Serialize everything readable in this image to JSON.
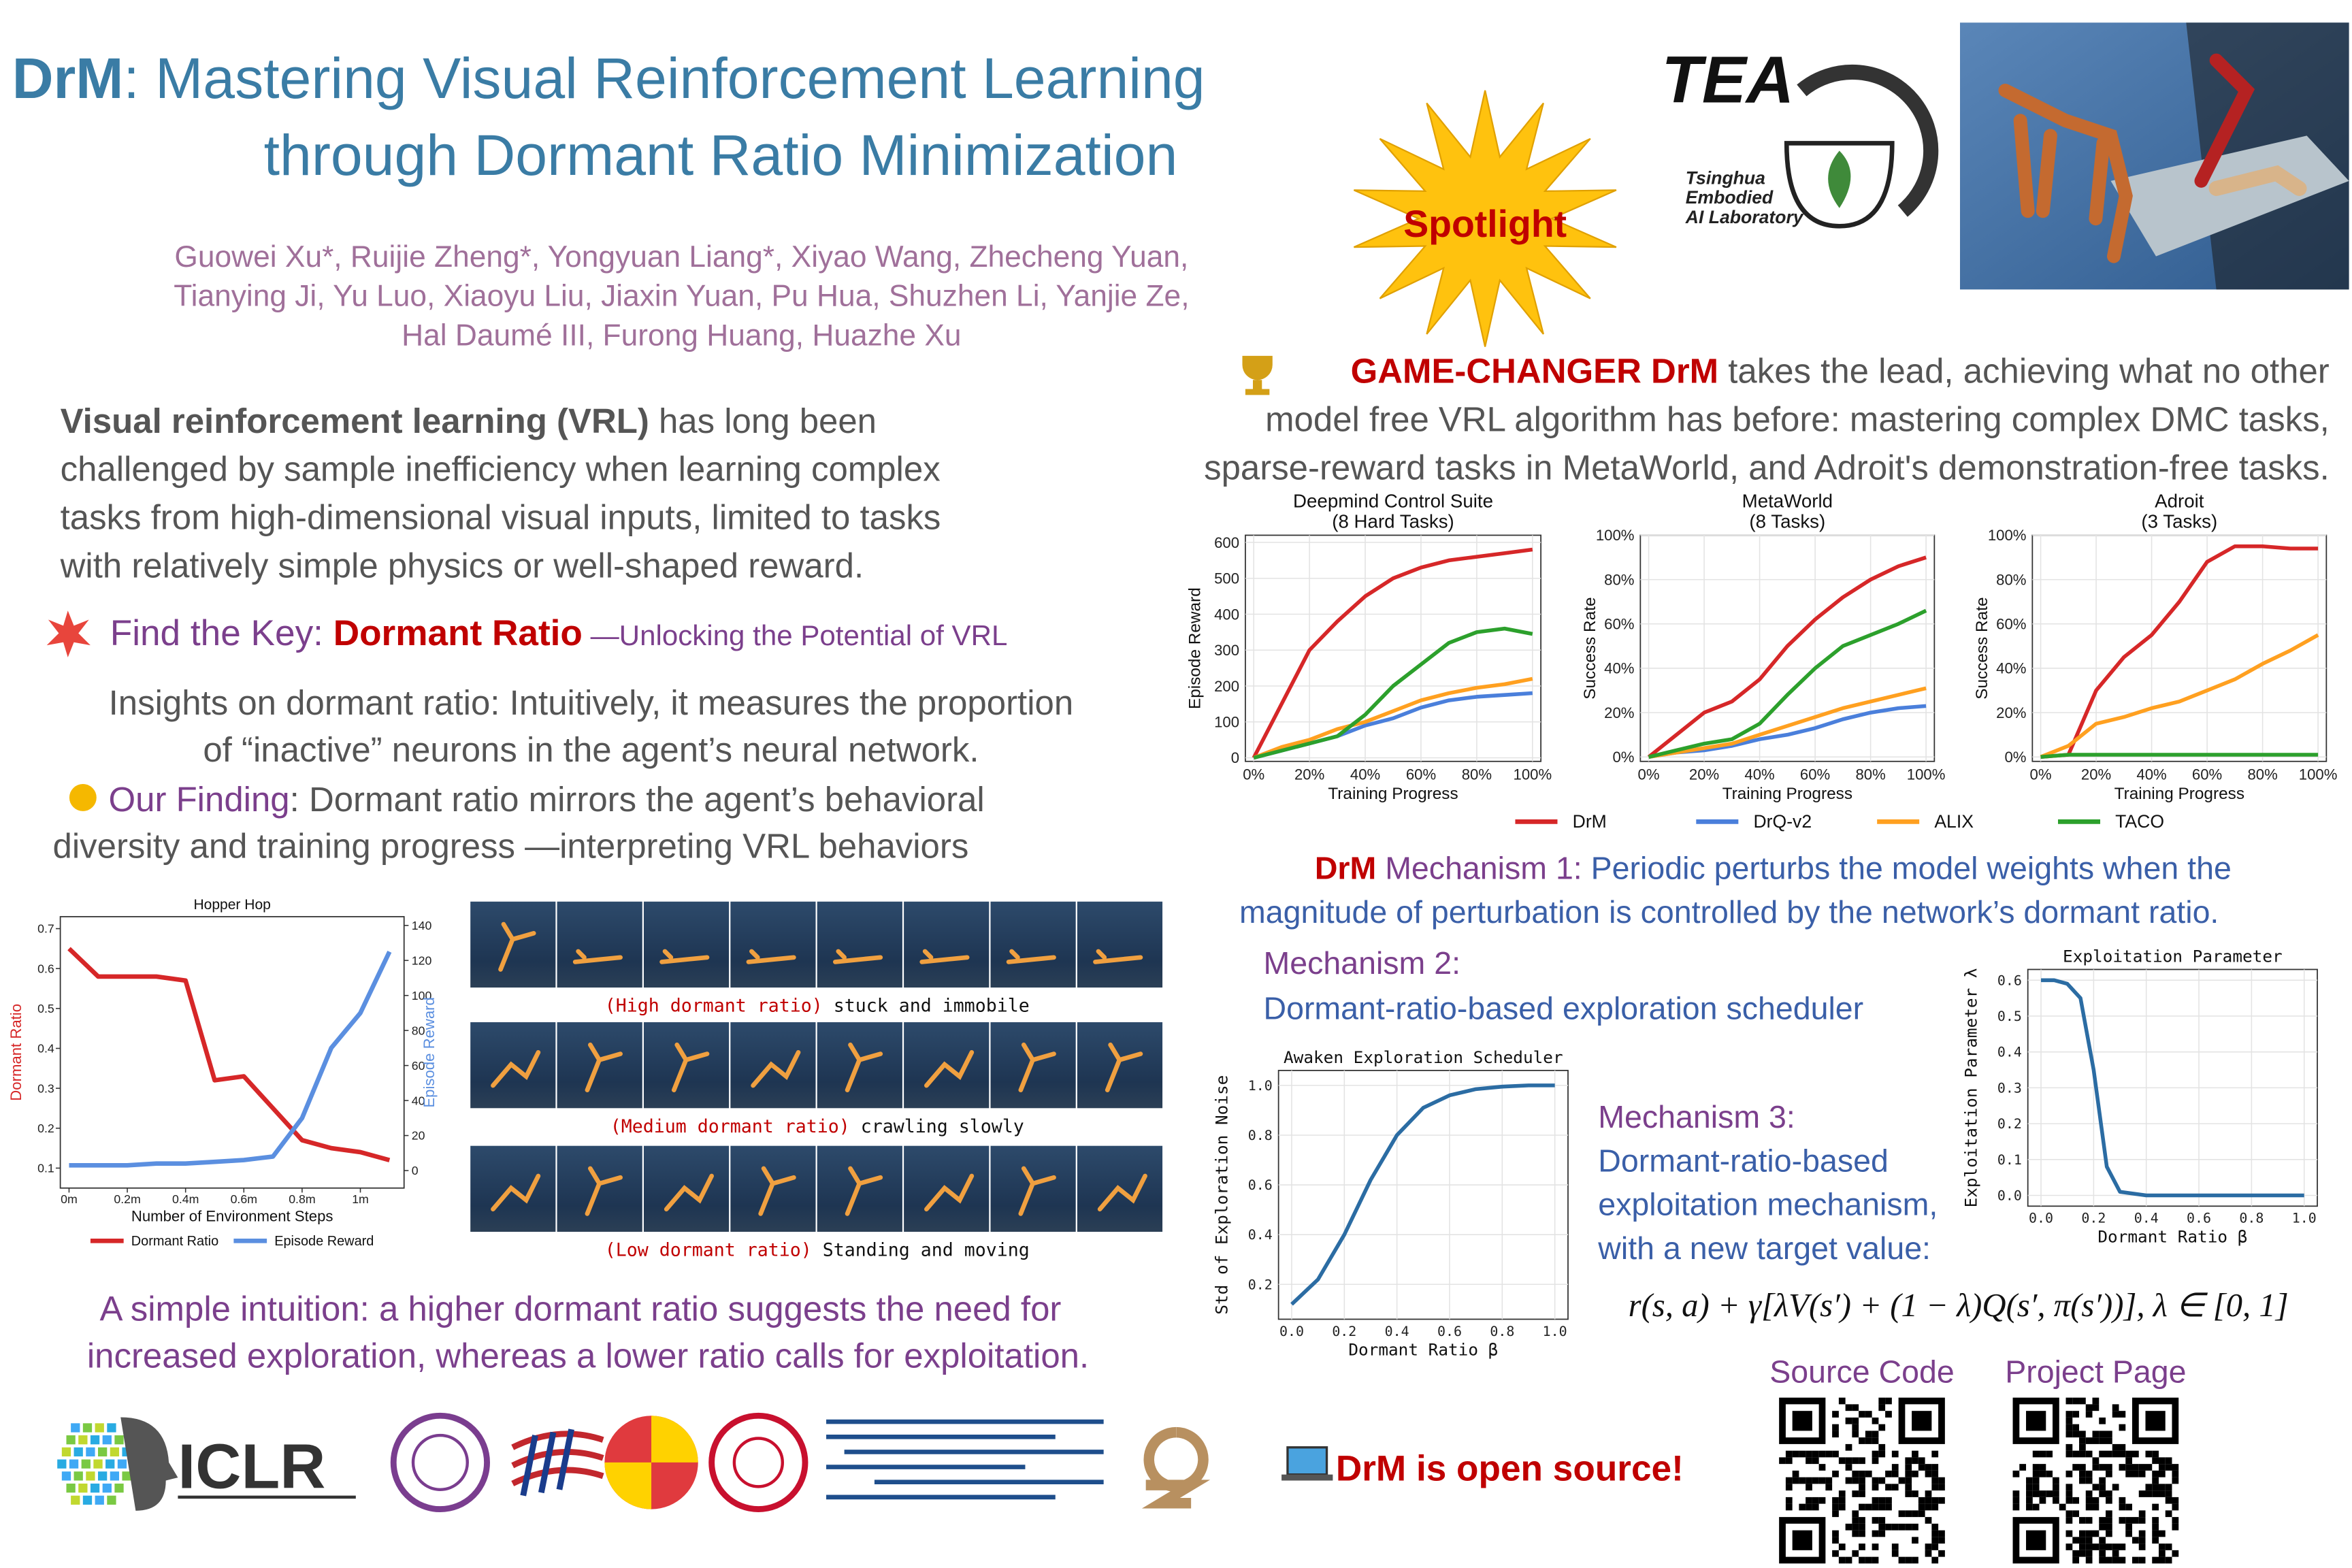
{
  "header": {
    "title_strong": "DrM",
    "title_rest": ": Mastering Visual Reinforcement Learning",
    "title_line2": "through Dormant Ratio Minimization",
    "authors": [
      "Guowei Xu*, Ruijie Zheng*, Yongyuan Liang*, Xiyao Wang, Zhecheng Yuan,",
      "Tianying Ji, Yu Luo, Xiaoyu Liu, Jiaxin Yuan, Pu Hua, Shuzhen Li, Yanjie Ze,",
      "Hal Daumé III, Furong Huang, Huazhe Xu"
    ],
    "badge": "Spotlight",
    "lab": {
      "name": "TEA",
      "subtitle": [
        "Tsinghua",
        "Embodied",
        "AI Laboratory"
      ]
    }
  },
  "intro": {
    "bold": "Visual reinforcement learning (VRL)",
    "lines": [
      " has long been",
      "challenged by sample inefficiency when learning complex",
      "tasks from high-dimensional visual inputs, limited to tasks",
      "with relatively simple physics or well-shaped reward."
    ]
  },
  "key": {
    "label": "Find the Key: ",
    "term": "Dormant Ratio",
    "tail": " —Unlocking the Potential of VRL"
  },
  "insights": [
    "Insights on dormant ratio: Intuitively, it measures the proportion",
    "of “inactive” neurons in the agent’s neural network."
  ],
  "finding": {
    "label": "Our Finding",
    "lines": [
      ": Dormant ratio mirrors the agent’s behavioral",
      "diversity and training progress —interpreting VRL behaviors"
    ]
  },
  "filmstrips": [
    {
      "level": "(High dormant ratio)",
      "behavior": "stuck and immobile"
    },
    {
      "level": "(Medium dormant ratio)",
      "behavior": "crawling slowly"
    },
    {
      "level": "(Low dormant ratio)",
      "behavior": "Standing and moving"
    }
  ],
  "intuition": [
    "A simple intuition: a higher dormant ratio suggests the need for",
    "increased exploration, whereas a lower ratio calls for exploitation."
  ],
  "logos": {
    "conference": "ICLR"
  },
  "highlight": {
    "bold": "GAME-CHANGER DrM",
    "lines": [
      " takes the lead, achieving what no other",
      "model free VRL algorithm has before: mastering complex DMC tasks,",
      "sparse-reward tasks in MetaWorld, and Adroit's demonstration-free tasks."
    ]
  },
  "mechanisms": [
    {
      "lead": "DrM",
      "label": " Mechanism 1:",
      "lines": [
        " Periodic perturbs the model weights when the",
        "magnitude of perturbation is controlled by the network’s dormant ratio."
      ]
    },
    {
      "label": "Mechanism 2:",
      "lines": [
        "Dormant-ratio-based exploration scheduler"
      ]
    },
    {
      "label": "Mechanism 3:",
      "lines": [
        "Dormant-ratio-based",
        "exploitation mechanism,",
        "with a new target value:"
      ]
    }
  ],
  "formula": "r(s, a) + γ[λV(s′) + (1 − λ)Q(s′, π(s′))], λ ∈ [0, 1]",
  "open_source": "DrM is open source!",
  "links": [
    "Source Code",
    "Project Page"
  ],
  "charts": [
    {
      "type": "line",
      "title": [
        "Deepmind Control Suite",
        "(8 Hard Tasks)"
      ],
      "xlabel": "Training Progress",
      "ylabel": "Episode Reward",
      "x": [
        0,
        10,
        20,
        30,
        40,
        50,
        60,
        70,
        80,
        90,
        100
      ],
      "xlim": [
        -3,
        103
      ],
      "xticks": [
        {
          "value": 0,
          "label": "0%"
        },
        {
          "value": 20,
          "label": "20%"
        },
        {
          "value": 40,
          "label": "40%"
        },
        {
          "value": 60,
          "label": "60%"
        },
        {
          "value": 80,
          "label": "80%"
        },
        {
          "value": 100,
          "label": "100%"
        }
      ],
      "ylim": [
        -10,
        620
      ],
      "yticks": [
        0,
        100,
        200,
        300,
        400,
        500,
        600
      ],
      "grid": true,
      "series": [
        {
          "name": "DrM",
          "color": "#d62728",
          "values": [
            0,
            150,
            300,
            380,
            450,
            500,
            530,
            550,
            560,
            570,
            580
          ]
        },
        {
          "name": "DrQ-v2",
          "color": "#4a7fdb",
          "values": [
            0,
            20,
            40,
            60,
            90,
            110,
            140,
            160,
            170,
            175,
            180
          ]
        },
        {
          "name": "ALIX",
          "color": "#ffa020",
          "values": [
            0,
            30,
            50,
            80,
            100,
            130,
            160,
            180,
            195,
            205,
            220
          ]
        },
        {
          "name": "TACO",
          "color": "#2ca02c",
          "values": [
            0,
            20,
            40,
            60,
            120,
            200,
            260,
            320,
            350,
            360,
            345
          ]
        }
      ]
    },
    {
      "type": "line",
      "title": [
        "MetaWorld",
        "(8 Tasks)"
      ],
      "xlabel": "Training Progress",
      "ylabel": "Success Rate",
      "x": [
        0,
        10,
        20,
        30,
        40,
        50,
        60,
        70,
        80,
        90,
        100
      ],
      "xlim": [
        -3,
        103
      ],
      "xticks": [
        {
          "value": 0,
          "label": "0%"
        },
        {
          "value": 20,
          "label": "20%"
        },
        {
          "value": 40,
          "label": "40%"
        },
        {
          "value": 60,
          "label": "60%"
        },
        {
          "value": 80,
          "label": "80%"
        },
        {
          "value": 100,
          "label": "100%"
        }
      ],
      "ylim": [
        -2,
        100
      ],
      "yticks": [
        {
          "value": 0,
          "label": "0%"
        },
        {
          "value": 20,
          "label": "20%"
        },
        {
          "value": 40,
          "label": "40%"
        },
        {
          "value": 60,
          "label": "60%"
        },
        {
          "value": 80,
          "label": "80%"
        },
        {
          "value": 100,
          "label": "100%"
        }
      ],
      "grid": true,
      "series": [
        {
          "name": "DrM",
          "color": "#d62728",
          "values": [
            0,
            10,
            20,
            25,
            35,
            50,
            62,
            72,
            80,
            86,
            90
          ]
        },
        {
          "name": "DrQ-v2",
          "color": "#4a7fdb",
          "values": [
            0,
            2,
            3,
            5,
            8,
            10,
            13,
            17,
            20,
            22,
            23
          ]
        },
        {
          "name": "ALIX",
          "color": "#ffa020",
          "values": [
            0,
            2,
            4,
            6,
            10,
            14,
            18,
            22,
            25,
            28,
            31
          ]
        },
        {
          "name": "TACO",
          "color": "#2ca02c",
          "values": [
            0,
            3,
            6,
            8,
            15,
            28,
            40,
            50,
            55,
            60,
            66
          ]
        }
      ]
    },
    {
      "type": "line",
      "title": [
        "Adroit",
        "(3 Tasks)"
      ],
      "xlabel": "Training Progress",
      "ylabel": "Success Rate",
      "x": [
        0,
        10,
        20,
        30,
        40,
        50,
        60,
        70,
        80,
        90,
        100
      ],
      "xlim": [
        -3,
        103
      ],
      "xticks": [
        {
          "value": 0,
          "label": "0%"
        },
        {
          "value": 20,
          "label": "20%"
        },
        {
          "value": 40,
          "label": "40%"
        },
        {
          "value": 60,
          "label": "60%"
        },
        {
          "value": 80,
          "label": "80%"
        },
        {
          "value": 100,
          "label": "100%"
        }
      ],
      "ylim": [
        -2,
        100
      ],
      "yticks": [
        {
          "value": 0,
          "label": "0%"
        },
        {
          "value": 20,
          "label": "20%"
        },
        {
          "value": 40,
          "label": "40%"
        },
        {
          "value": 60,
          "label": "60%"
        },
        {
          "value": 80,
          "label": "80%"
        },
        {
          "value": 100,
          "label": "100%"
        }
      ],
      "grid": true,
      "series": [
        {
          "name": "DrM",
          "color": "#d62728",
          "values": [
            0,
            1,
            30,
            45,
            55,
            70,
            88,
            95,
            95,
            94,
            94
          ]
        },
        {
          "name": "ALIX",
          "color": "#ffa020",
          "values": [
            0,
            5,
            15,
            18,
            22,
            25,
            30,
            35,
            42,
            48,
            55
          ]
        },
        {
          "name": "TACO",
          "color": "#2ca02c",
          "values": [
            0,
            1,
            1,
            1,
            1,
            1,
            1,
            1,
            1,
            1,
            1
          ]
        }
      ]
    },
    {
      "type": "line",
      "title": [
        "Hopper Hop"
      ],
      "xlabel": "Number of Environment Steps",
      "ylabel": "Dormant Ratio",
      "y2label": "Episode Reward",
      "x": [
        0,
        0.1,
        0.2,
        0.3,
        0.4,
        0.5,
        0.6,
        0.7,
        0.8,
        0.9,
        1.0,
        1.1
      ],
      "xlim": [
        -0.03,
        1.15
      ],
      "xticks": [
        {
          "value": 0,
          "label": "0m"
        },
        {
          "value": 0.2,
          "label": "0.2m"
        },
        {
          "value": 0.4,
          "label": "0.4m"
        },
        {
          "value": 0.6,
          "label": "0.6m"
        },
        {
          "value": 0.8,
          "label": "0.8m"
        },
        {
          "value": 1,
          "label": "1m"
        }
      ],
      "ylim": [
        0.05,
        0.73
      ],
      "yticks": [
        0.1,
        0.2,
        0.3,
        0.4,
        0.5,
        0.6,
        0.7
      ],
      "y2lim": [
        -10,
        145
      ],
      "y2ticks": [
        0,
        20,
        40,
        60,
        80,
        100,
        120,
        140
      ],
      "grid": false,
      "series": [
        {
          "name": "Dormant Ratio",
          "color": "#d62728",
          "values": [
            0.65,
            0.58,
            0.58,
            0.58,
            0.57,
            0.32,
            0.33,
            0.25,
            0.17,
            0.15,
            0.14,
            0.12
          ]
        },
        {
          "name": "Episode Reward",
          "color": "#5b8fe0",
          "axis": "y2",
          "values": [
            3,
            3,
            3,
            4,
            4,
            5,
            6,
            8,
            30,
            70,
            90,
            125
          ]
        }
      ]
    },
    {
      "type": "line",
      "title": [
        "Awaken Exploration Scheduler"
      ],
      "xlabel": "Dormant Ratio β",
      "ylabel": "Std of Exploration Noise",
      "x": [
        0,
        0.1,
        0.2,
        0.3,
        0.4,
        0.5,
        0.6,
        0.7,
        0.8,
        0.9,
        1.0
      ],
      "xlim": [
        -0.05,
        1.05
      ],
      "xticks": [
        {
          "value": 0,
          "label": "0.0"
        },
        0.2,
        0.4,
        0.6,
        0.8,
        {
          "value": 1,
          "label": "1.0"
        }
      ],
      "ylim": [
        0.06,
        1.06
      ],
      "yticks": [
        0.2,
        0.4,
        0.6,
        0.8,
        {
          "value": 1,
          "label": "1.0"
        }
      ],
      "grid": true,
      "series": [
        {
          "color": "#2b6ca3",
          "values": [
            0.12,
            0.22,
            0.4,
            0.62,
            0.8,
            0.91,
            0.96,
            0.985,
            0.995,
            1,
            1
          ]
        }
      ]
    },
    {
      "type": "line",
      "title": [
        "Exploitation Parameter"
      ],
      "xlabel": "Dormant Ratio β",
      "ylabel": "Exploitation Parameter λ",
      "x": [
        0,
        0.05,
        0.1,
        0.15,
        0.2,
        0.25,
        0.3,
        0.4,
        0.6,
        0.8,
        1.0
      ],
      "xlim": [
        -0.05,
        1.05
      ],
      "xticks": [
        {
          "value": 0,
          "label": "0.0"
        },
        0.2,
        0.4,
        0.6,
        0.8,
        {
          "value": 1,
          "label": "1.0"
        }
      ],
      "ylim": [
        -0.03,
        0.63
      ],
      "yticks": [
        {
          "value": 0,
          "label": "0.0"
        },
        0.1,
        0.2,
        0.3,
        0.4,
        0.5,
        0.6
      ],
      "grid": true,
      "series": [
        {
          "color": "#2b6ca3",
          "values": [
            0.6,
            0.6,
            0.59,
            0.55,
            0.35,
            0.08,
            0.01,
            0,
            0,
            0,
            0
          ]
        }
      ]
    }
  ]
}
